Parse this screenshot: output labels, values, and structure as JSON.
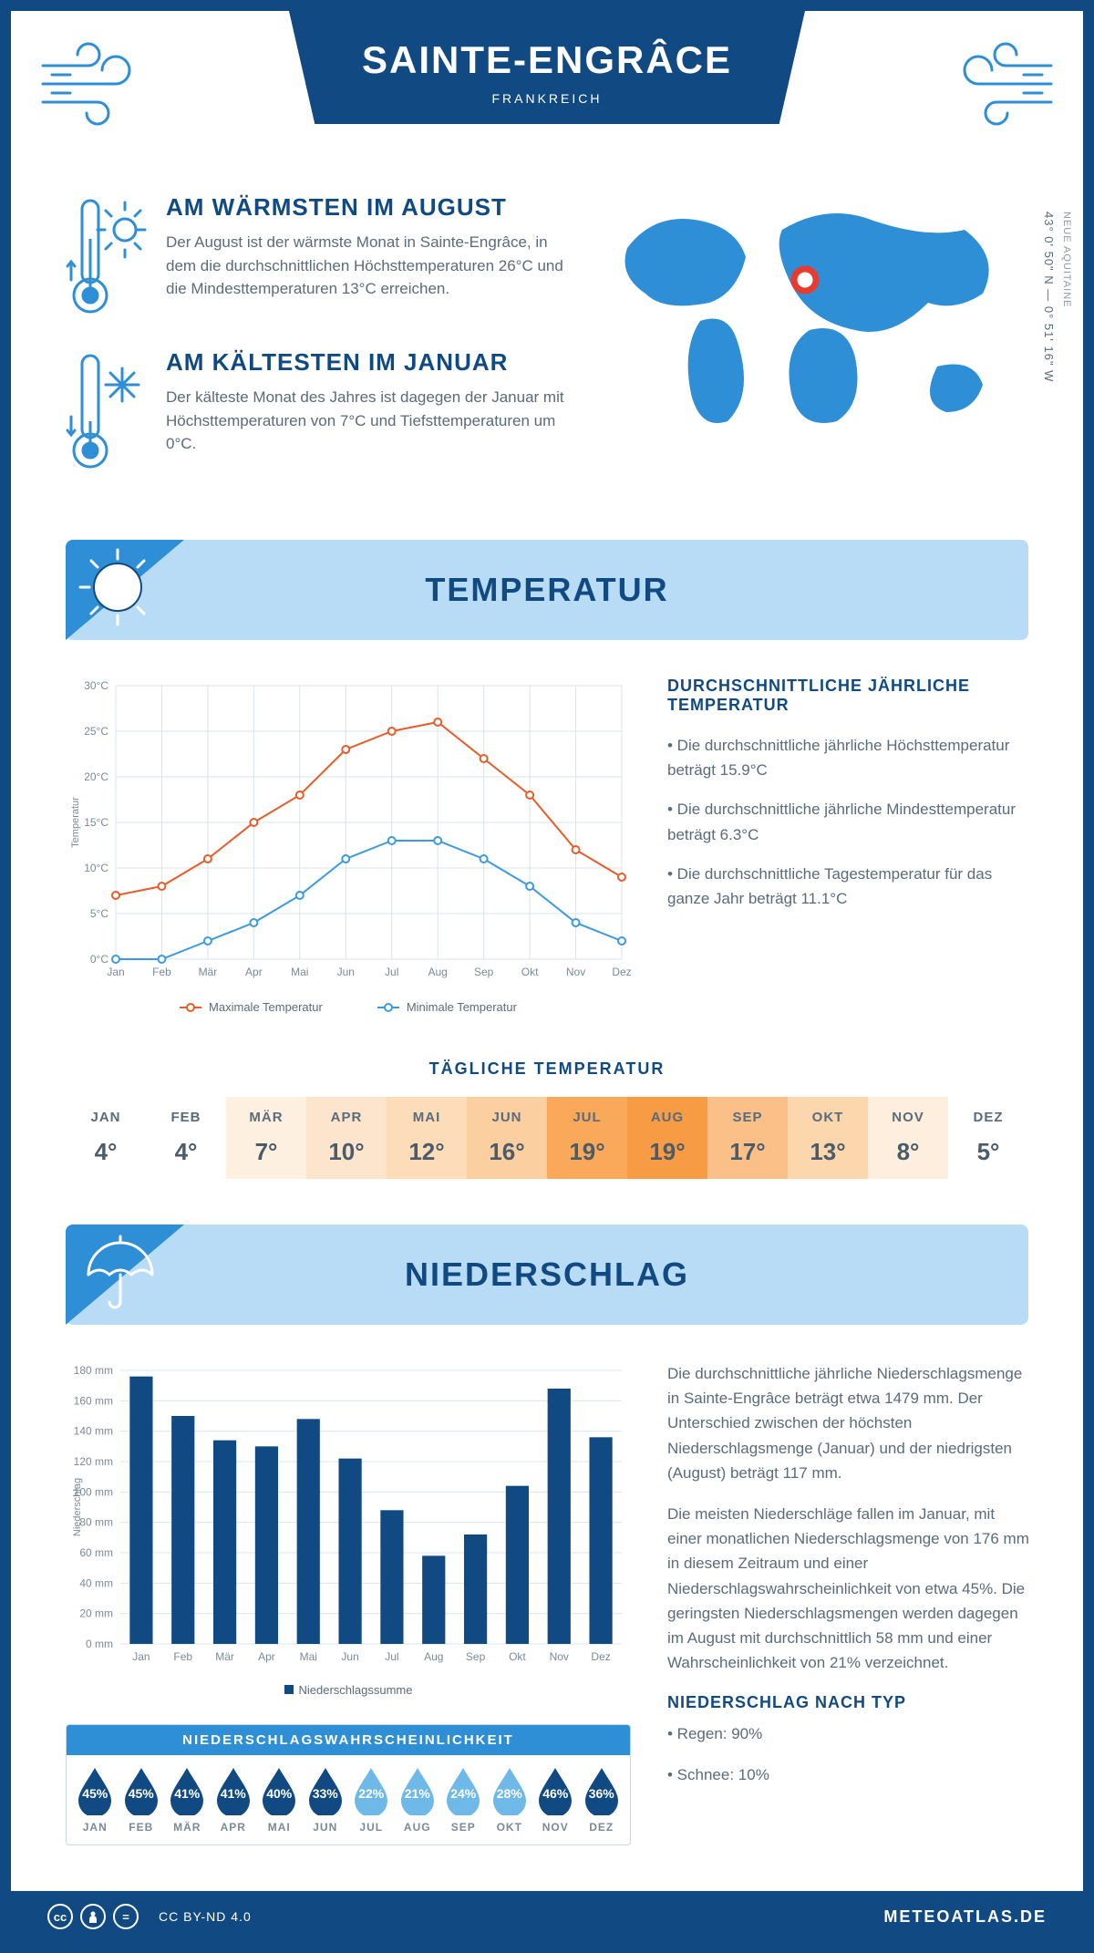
{
  "header": {
    "city": "SAINTE-ENGRÂCE",
    "country": "FRANKREICH"
  },
  "coords": {
    "line": "43° 0' 50\" N — 0° 51' 16\" W",
    "region": "NEUE AQUITAINE"
  },
  "warmest": {
    "title": "AM WÄRMSTEN IM AUGUST",
    "body": "Der August ist der wärmste Monat in Sainte-Engrâce, in dem die durchschnittlichen Höchsttemperaturen 26°C und die Mindesttemperaturen 13°C erreichen."
  },
  "coldest": {
    "title": "AM KÄLTESTEN IM JANUAR",
    "body": "Der kälteste Monat des Jahres ist dagegen der Januar mit Höchsttemperaturen von 7°C und Tiefsttemperaturen um 0°C."
  },
  "section_temp": "TEMPERATUR",
  "section_precip": "NIEDERSCHLAG",
  "months_full": [
    "Jan",
    "Feb",
    "Mär",
    "Apr",
    "Mai",
    "Jun",
    "Jul",
    "Aug",
    "Sep",
    "Okt",
    "Nov",
    "Dez"
  ],
  "months_short": [
    "JAN",
    "FEB",
    "MÄR",
    "APR",
    "MAI",
    "JUN",
    "JUL",
    "AUG",
    "SEP",
    "OKT",
    "NOV",
    "DEZ"
  ],
  "temp_chart": {
    "type": "line",
    "ylabel": "Temperatur",
    "ylim": [
      0,
      30
    ],
    "ytick_step": 5,
    "ytick_suffix": "°C",
    "grid_color": "#d9e4ed",
    "background_color": "#ffffff",
    "series": [
      {
        "name": "Maximale Temperatur",
        "color": "#e85c2b",
        "values": [
          7,
          8,
          11,
          15,
          18,
          23,
          25,
          26,
          22,
          18,
          12,
          9
        ]
      },
      {
        "name": "Minimale Temperatur",
        "color": "#3b9ae0",
        "values": [
          0,
          0,
          2,
          4,
          7,
          11,
          13,
          13,
          11,
          8,
          4,
          2
        ]
      }
    ],
    "line_width": 2,
    "marker": "circle",
    "marker_size": 4,
    "font_size": 12
  },
  "temp_stats": {
    "title": "DURCHSCHNITTLICHE JÄHRLICHE TEMPERATUR",
    "bullets": [
      "• Die durchschnittliche jährliche Höchsttemperatur beträgt 15.9°C",
      "• Die durchschnittliche jährliche Mindesttemperatur beträgt 6.3°C",
      "• Die durchschnittliche Tagestemperatur für das ganze Jahr beträgt 11.1°C"
    ]
  },
  "daily_temp": {
    "title": "TÄGLICHE TEMPERATUR",
    "values": [
      "4°",
      "4°",
      "7°",
      "10°",
      "12°",
      "16°",
      "19°",
      "19°",
      "17°",
      "13°",
      "8°",
      "5°"
    ],
    "colors": [
      "#ffffff",
      "#ffffff",
      "#fdf0e0",
      "#fde5cd",
      "#fcdcb9",
      "#fbcf9f",
      "#faa85a",
      "#f79b45",
      "#fbc088",
      "#fcd6ac",
      "#fdeedd",
      "#ffffff"
    ]
  },
  "precip_chart": {
    "type": "bar",
    "ylabel": "Niederschlag",
    "ylim": [
      0,
      180
    ],
    "ytick_step": 20,
    "ytick_suffix": " mm",
    "bar_color": "#114a82",
    "grid_color": "#d9e4ed",
    "legend": "Niederschlagssumme",
    "values": [
      176,
      150,
      134,
      130,
      148,
      122,
      88,
      58,
      72,
      104,
      168,
      136
    ],
    "bar_width": 0.55,
    "font_size": 12
  },
  "precip_text": {
    "p1": "Die durchschnittliche jährliche Niederschlagsmenge in Sainte-Engrâce beträgt etwa 1479 mm. Der Unterschied zwischen der höchsten Niederschlagsmenge (Januar) und der niedrigsten (August) beträgt 117 mm.",
    "p2": "Die meisten Niederschläge fallen im Januar, mit einer monatlichen Niederschlagsmenge von 176 mm in diesem Zeitraum und einer Niederschlagswahrscheinlichkeit von etwa 45%. Die geringsten Niederschlagsmengen werden dagegen im August mit durchschnittlich 58 mm und einer Wahrscheinlichkeit von 21% verzeichnet.",
    "type_title": "NIEDERSCHLAG NACH TYP",
    "type_bullets": [
      "• Regen: 90%",
      "• Schnee: 10%"
    ]
  },
  "probability": {
    "title": "NIEDERSCHLAGSWAHRSCHEINLICHKEIT",
    "values": [
      45,
      45,
      41,
      41,
      40,
      33,
      22,
      21,
      24,
      28,
      46,
      36
    ],
    "dark_color": "#114a82",
    "light_color": "#6fb9e8",
    "light_threshold": 30
  },
  "footer": {
    "license": "CC BY-ND 4.0",
    "brand": "METEOATLAS.DE"
  },
  "colors": {
    "primary": "#114a82",
    "accent": "#2e8fd6",
    "light": "#b8dcf5",
    "grid": "#d9e4ed",
    "text_muted": "#5a6b7a"
  }
}
